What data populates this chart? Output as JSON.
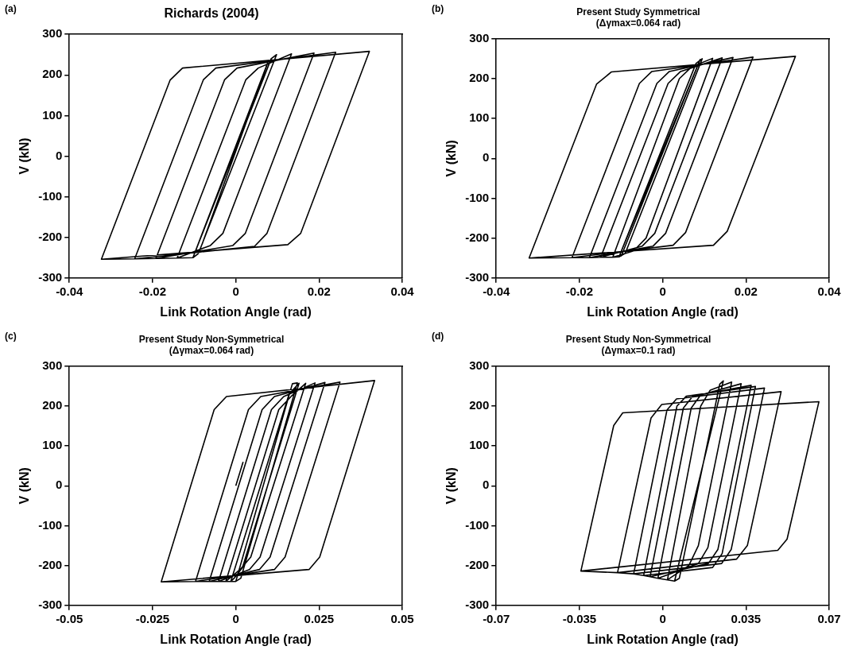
{
  "chart_data": [
    {
      "type": "line",
      "title": "Richards (2004)",
      "xlabel": "Link Rotation Angle (rad)",
      "ylabel": "V (kN)",
      "annotations": [
        "(a)"
      ],
      "xlim": [
        -0.04,
        0.04
      ],
      "xticks": [
        -0.04,
        -0.02,
        0,
        0.02,
        0.04
      ],
      "ylim": [
        -300,
        300
      ],
      "yticks": [
        -300,
        -200,
        -100,
        0,
        100,
        200,
        300
      ],
      "series": [
        {
          "color": "#000000",
          "x": [
            -0.0081,
            0.0079,
            -0.0103,
            0.0085,
            0.0098,
            -0.009,
            -0.0103,
            -0.0141,
            0.0024,
            0.0054,
            0.0134,
            -0.0031,
            -0.0061,
            -0.0141,
            -0.0192,
            -0.0027,
            0.0003,
            0.0188,
            0.0023,
            -0.0007,
            -0.0192,
            -0.0243,
            -0.0078,
            -0.0048,
            0.024,
            0.0075,
            0.0045,
            -0.0243,
            -0.0323,
            -0.0158,
            -0.0128,
            0.0321,
            0.0156,
            0.0125,
            -0.0323
          ],
          "values": [
            -217,
            236,
            -250,
            240,
            250,
            -240,
            -250,
            -251,
            188,
            217,
            252,
            -190,
            -220,
            -251,
            -252,
            188,
            217,
            254,
            -190,
            -220,
            -252,
            -253,
            188,
            217,
            256,
            -190,
            -222,
            -253,
            -254,
            187,
            217,
            258,
            -190,
            -218,
            -254
          ]
        }
      ]
    },
    {
      "type": "line",
      "title": "Present Study Symmetrical",
      "subtitle": "(Δγmax=0.064 rad)",
      "xlabel": "Link Rotation Angle (rad)",
      "ylabel": "V (kN)",
      "annotations": [
        "(b)"
      ],
      "xlim": [
        -0.04,
        0.04
      ],
      "xticks": [
        -0.04,
        -0.02,
        0,
        0.02,
        0.04
      ],
      "ylim": [
        -300,
        300
      ],
      "yticks": [
        -300,
        -200,
        -100,
        0,
        100,
        200,
        300
      ],
      "series": [
        {
          "color": "#000000",
          "x": [
            -0.01,
            0.009,
            -0.0105,
            0.008,
            0.0095,
            -0.009,
            -0.0105,
            -0.012,
            0.004,
            0.007,
            0.012,
            -0.004,
            -0.007,
            -0.012,
            -0.0149,
            0.0013,
            0.0043,
            0.0143,
            -0.0019,
            -0.0049,
            -0.0149,
            -0.0176,
            -0.0014,
            0.0016,
            0.0169,
            0.0007,
            -0.0023,
            -0.0176,
            -0.0218,
            -0.0056,
            -0.0026,
            0.0217,
            0.0055,
            0.0025,
            -0.0218,
            -0.0321,
            -0.0159,
            -0.0123,
            0.0319,
            0.0155,
            0.0122,
            -0.0321
          ],
          "values": [
            -246,
            248,
            -247,
            238,
            250,
            -238,
            -247,
            -248,
            200,
            230,
            251,
            -200,
            -232,
            -248,
            -248,
            188,
            218,
            252,
            -188,
            -220,
            -248,
            -249,
            188,
            218,
            253,
            -188,
            -220,
            -249,
            -249,
            188,
            218,
            254,
            -186,
            -218,
            -249,
            -250,
            186,
            217,
            256,
            -183,
            -218,
            -250
          ]
        }
      ]
    },
    {
      "type": "line",
      "title": "Present Study Non-Symmetrical",
      "subtitle": "(Δγmax=0.064 rad)",
      "xlabel": "Link Rotation Angle (rad)",
      "ylabel": "V (kN)",
      "annotations": [
        "(c)"
      ],
      "xlim": [
        -0.05,
        0.05
      ],
      "xticks": [
        -0.05,
        -0.025,
        0,
        0.025,
        0.05
      ],
      "ylim": [
        -300,
        300
      ],
      "yticks": [
        -300,
        -200,
        -100,
        0,
        100,
        200,
        300
      ],
      "series": [
        {
          "color": "#000000",
          "x": [
            0,
            0.0022,
            0.001,
            0,
            0.017,
            0.0185,
            0.0015,
            0,
            -0.0015,
            0.016,
            0.019,
            0.002,
            -0.0005,
            -0.0015,
            -0.003,
            0.0129,
            0.0166,
            0.021,
            0.0045,
            0.0013,
            -0.003,
            -0.0052,
            0.0107,
            0.0144,
            0.0238,
            0.0073,
            0.0041,
            -0.0052,
            -0.008,
            0.0079,
            0.0116,
            0.0268,
            0.0103,
            0.0071,
            -0.008,
            -0.0121,
            0.0038,
            0.0075,
            0.0313,
            0.0148,
            0.0116,
            -0.0121,
            -0.0224,
            -0.0065,
            -0.0028,
            0.0417,
            0.0252,
            0.022,
            -0.0224
          ],
          "values": [
            0,
            60,
            null,
            -240,
            256,
            258,
            -232,
            -240,
            -240,
            230,
            257,
            -205,
            -232,
            -240,
            -240,
            191,
            224,
            257,
            -179,
            -210,
            -240,
            -240,
            191,
            224,
            258,
            -179,
            -210,
            -240,
            -240,
            191,
            224,
            259,
            -179,
            -210,
            -240,
            -240,
            191,
            224,
            260,
            -179,
            -210,
            -240,
            -241,
            191,
            224,
            264,
            -179,
            -210,
            -241
          ]
        }
      ]
    },
    {
      "type": "line",
      "title": "Present Study Non-Symmetrical",
      "subtitle": "(Δγmax=0.1 rad)",
      "xlabel": "Link Rotation Angle (rad)",
      "ylabel": "V (kN)",
      "annotations": [
        "(d)"
      ],
      "xlim": [
        -0.07,
        0.07
      ],
      "xticks": [
        -0.07,
        -0.035,
        0,
        0.035,
        0.07
      ],
      "ylim": [
        -300,
        300
      ],
      "yticks": [
        -300,
        -200,
        -100,
        0,
        100,
        200,
        300
      ],
      "series": [
        {
          "color": "#000000",
          "x": [
            0.005,
            0.0255,
            0.024,
            0.007,
            0.005,
            0.002,
            0.016,
            0.02,
            0.029,
            0.015,
            0.011,
            0.002,
            -0.002,
            0.012,
            0.016,
            0.033,
            0.019,
            0.015,
            -0.002,
            -0.0053,
            0.0087,
            0.0127,
            0.0372,
            0.0232,
            0.0192,
            -0.0053,
            -0.008,
            0.006,
            0.01,
            0.039,
            0.025,
            0.021,
            -0.008,
            -0.0122,
            0.0018,
            0.0058,
            0.0428,
            0.0288,
            0.0248,
            -0.0122,
            -0.019,
            -0.0049,
            -0.0004,
            0.0498,
            0.0356,
            0.0311,
            -0.019,
            -0.0344,
            -0.0206,
            -0.0168,
            0.0657,
            0.0523,
            0.0484,
            -0.0344
          ],
          "values": [
            -239,
            263,
            255,
            -232,
            -239,
            -236,
            200,
            240,
            260,
            -150,
            -200,
            -236,
            -232,
            195,
            228,
            256,
            -155,
            -195,
            -232,
            -228,
            195,
            225,
            252,
            -160,
            -195,
            -228,
            -225,
            200,
            225,
            249,
            -170,
            -205,
            -225,
            -221,
            190,
            218,
            245,
            -160,
            -195,
            -221,
            -218,
            170,
            204,
            236,
            -150,
            -184,
            -218,
            -214,
            151,
            183,
            211,
            -134,
            -162,
            -214
          ]
        }
      ]
    }
  ]
}
